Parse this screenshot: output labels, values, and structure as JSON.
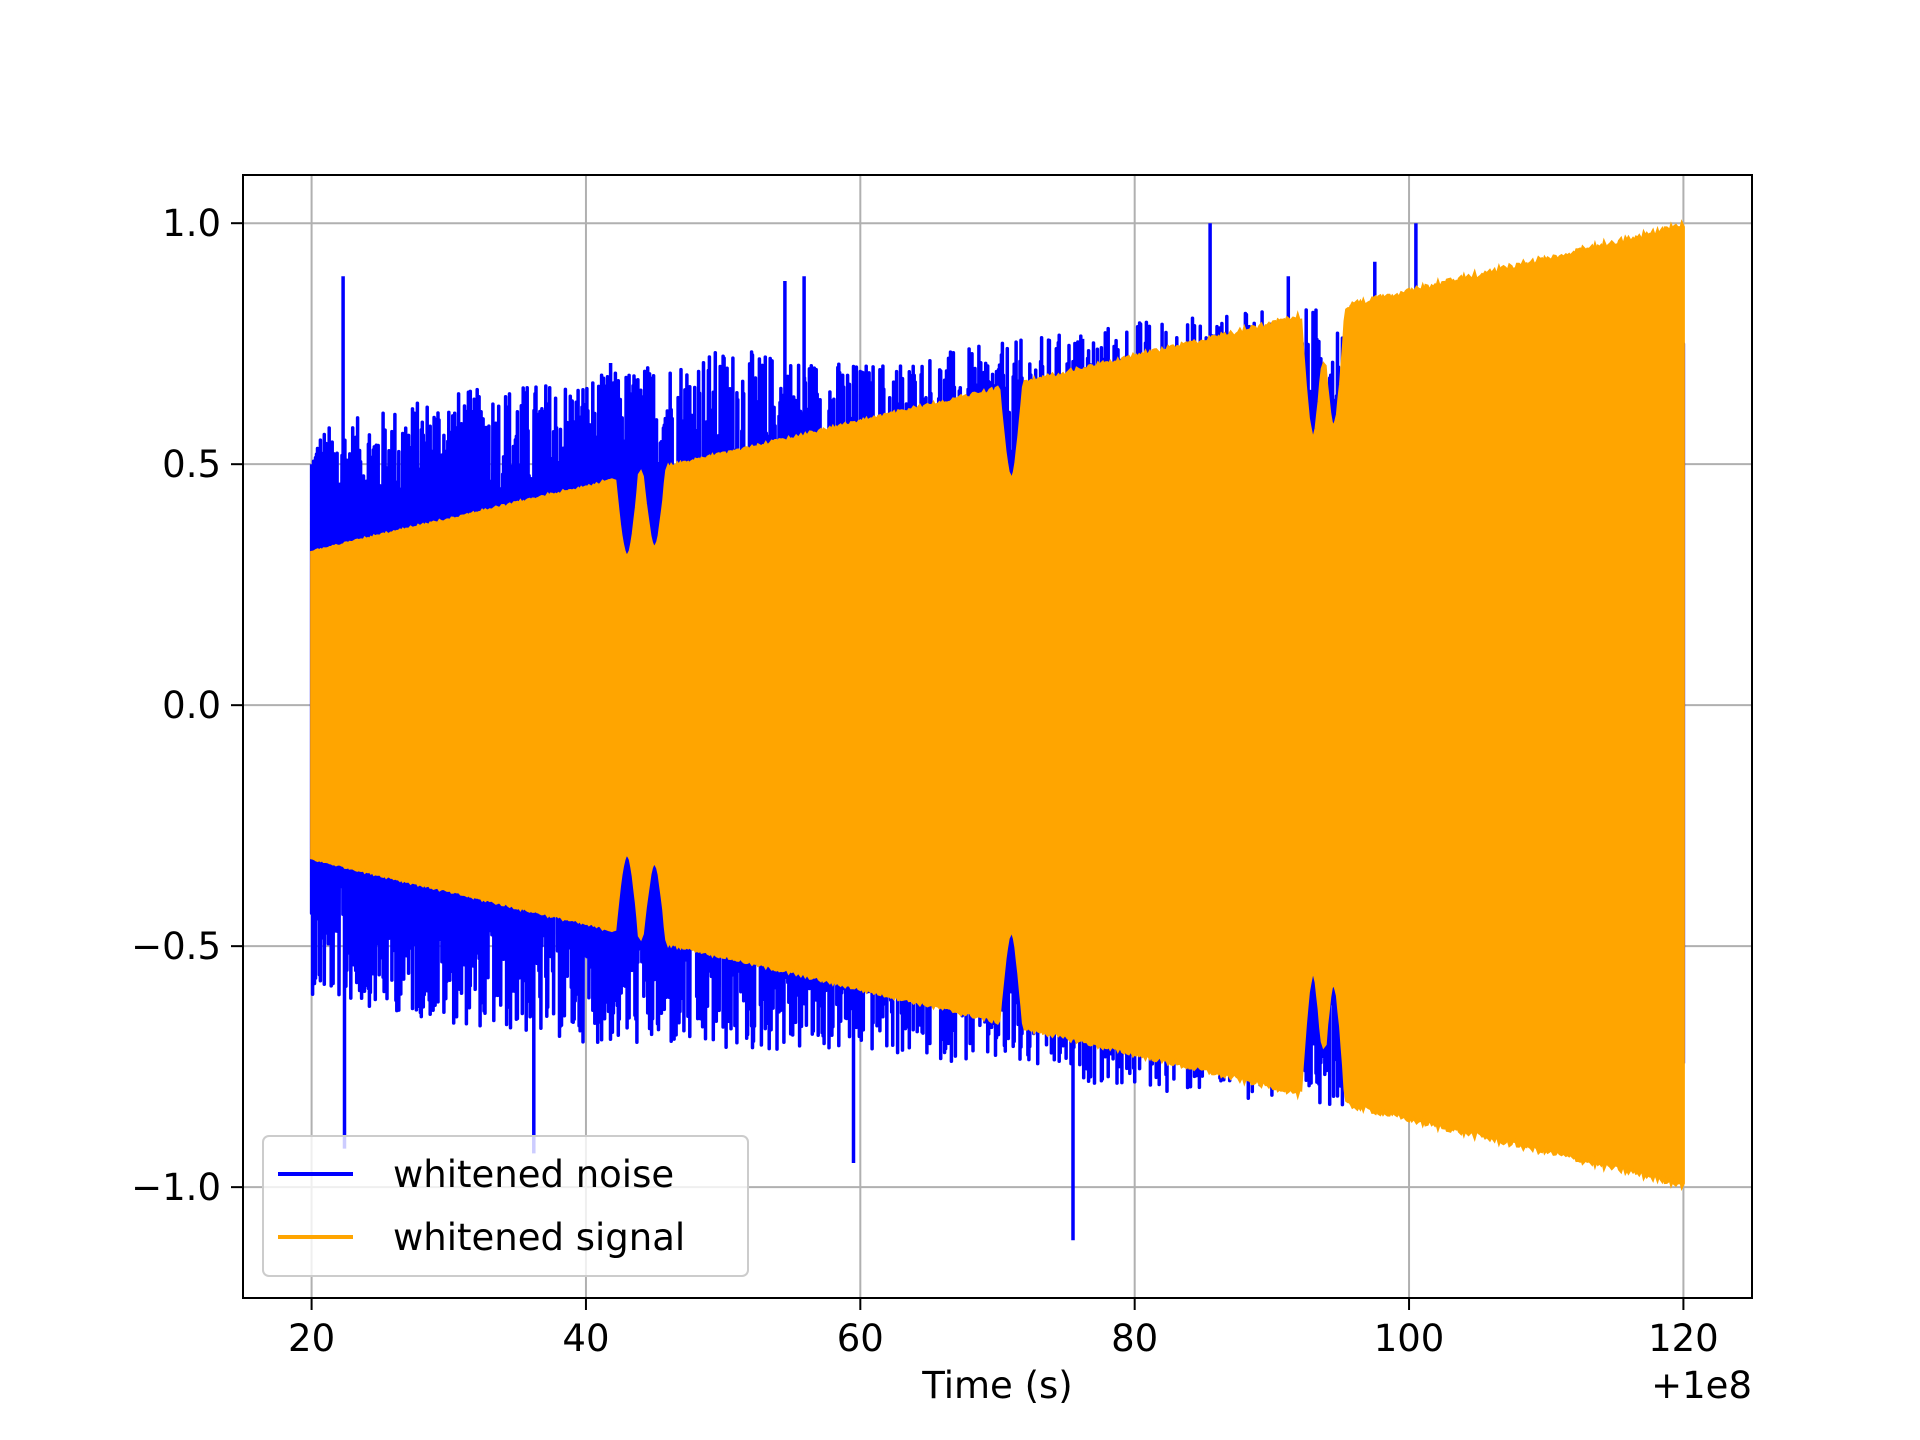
{
  "chart_data": {
    "type": "line",
    "title": "",
    "xlabel": "Time (s)",
    "ylabel": "",
    "x_offset_label": "+1e8",
    "xlim": [
      15,
      125
    ],
    "ylim": [
      -1.23,
      1.1
    ],
    "x_ticks": [
      20,
      40,
      60,
      80,
      100,
      120
    ],
    "x_tick_labels": [
      "20",
      "40",
      "60",
      "80",
      "100",
      "120"
    ],
    "y_ticks": [
      -1.0,
      -0.5,
      0.0,
      0.5,
      1.0
    ],
    "y_tick_labels": [
      "−1.0",
      "−0.5",
      "0.0",
      "0.5",
      "1.0"
    ],
    "grid": true,
    "legend_position": "lower-left",
    "series": [
      {
        "name": "whitened noise",
        "color": "#0000ff",
        "x_range": [
          20,
          120
        ],
        "envelope_upper": [
          [
            20,
            0.57
          ],
          [
            30,
            0.65
          ],
          [
            40,
            0.68
          ],
          [
            50,
            0.74
          ],
          [
            60,
            0.71
          ],
          [
            70,
            0.75
          ],
          [
            80,
            0.8
          ],
          [
            90,
            0.82
          ],
          [
            100,
            0.84
          ],
          [
            110,
            0.86
          ],
          [
            120,
            0.88
          ]
        ],
        "envelope_lower": [
          [
            20,
            -0.6
          ],
          [
            30,
            -0.66
          ],
          [
            40,
            -0.7
          ],
          [
            50,
            -0.72
          ],
          [
            60,
            -0.72
          ],
          [
            70,
            -0.75
          ],
          [
            80,
            -0.8
          ],
          [
            90,
            -0.82
          ],
          [
            100,
            -0.84
          ],
          [
            110,
            -0.88
          ],
          [
            120,
            -0.92
          ]
        ],
        "peaks": [
          [
            22.3,
            0.89
          ],
          [
            36.2,
            -0.93
          ],
          [
            41.8,
            0.71
          ],
          [
            54.5,
            0.88
          ],
          [
            55.9,
            0.89
          ],
          [
            75.5,
            -1.11
          ],
          [
            76.2,
            0.76
          ],
          [
            85.5,
            1.0
          ],
          [
            91.2,
            0.89
          ],
          [
            100.5,
            1.0
          ],
          [
            97.5,
            0.92
          ],
          [
            105.2,
            0.83
          ],
          [
            22.4,
            -0.92
          ],
          [
            59.5,
            -0.95
          ]
        ]
      },
      {
        "name": "whitened signal",
        "color": "#ffa500",
        "x_range": [
          20,
          120
        ],
        "amplitude_start": 0.32,
        "amplitude_end": 1.0,
        "dips": [
          [
            43,
            0.32
          ],
          [
            45,
            0.34
          ],
          [
            71,
            0.49
          ],
          [
            93,
            0.58
          ],
          [
            94.5,
            0.6
          ]
        ]
      }
    ]
  }
}
